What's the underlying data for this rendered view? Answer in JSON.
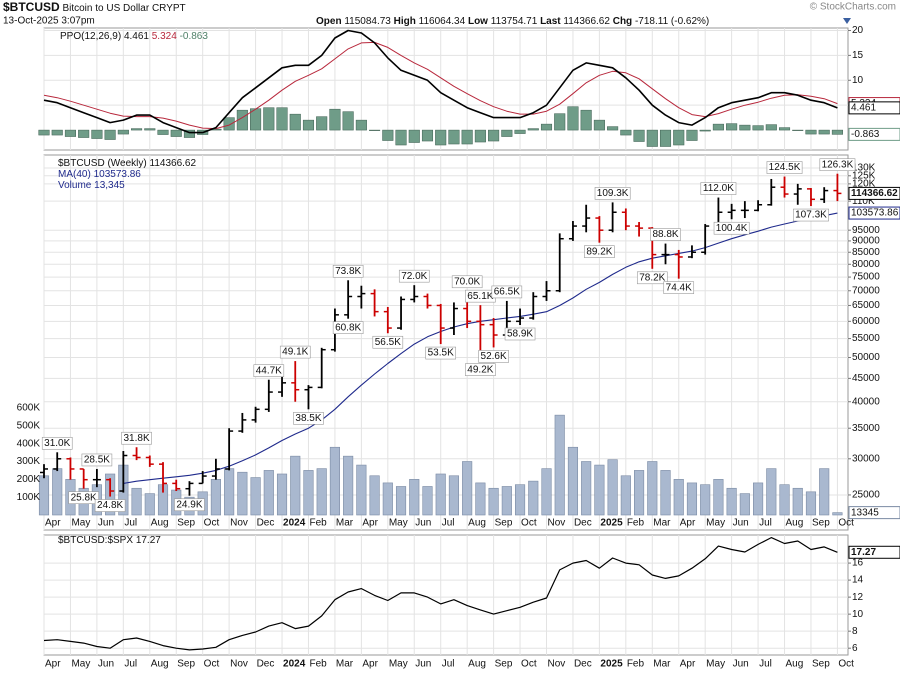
{
  "header": {
    "symbol": "$BTCUSD",
    "name": "Bitcoin to US Dollar",
    "exchange": "CRYPT",
    "datetime": "13-Oct-2025 3:07pm",
    "open_label": "Open",
    "open": 115084.73,
    "high_label": "High",
    "high": 116064.34,
    "low_label": "Low",
    "low": 113754.71,
    "last_label": "Last",
    "last": 114366.62,
    "chg_label": "Chg",
    "chg": "-718.11 (-0.62%)",
    "credit": "© StockCharts.com"
  },
  "time_axis": {
    "x": [
      0,
      0.5,
      1,
      1.5,
      2,
      2.5,
      3,
      3.5,
      4,
      4.5,
      5,
      5.5,
      6,
      6.5,
      7,
      7.5,
      8,
      8.5,
      9,
      9.5,
      10,
      10.5,
      11,
      11.5,
      12,
      12.5,
      13,
      13.5,
      14,
      14.5,
      15,
      15.5,
      16,
      16.5,
      17,
      17.5,
      18,
      18.5,
      19,
      19.5,
      20,
      20.5,
      21,
      21.5,
      22,
      22.5,
      23,
      23.5,
      24,
      24.5,
      25,
      25.5,
      26,
      26.5,
      27,
      27.5,
      28,
      28.5,
      29,
      29.5,
      30
    ],
    "xlim": [
      0,
      30.4
    ],
    "xticks": [
      {
        "value": 0,
        "label": "Apr"
      },
      {
        "value": 1,
        "label": "May"
      },
      {
        "value": 2,
        "label": "Jun"
      },
      {
        "value": 3,
        "label": "Jul"
      },
      {
        "value": 4,
        "label": "Aug"
      },
      {
        "value": 5,
        "label": "Sep"
      },
      {
        "value": 6,
        "label": "Oct"
      },
      {
        "value": 7,
        "label": "Nov"
      },
      {
        "value": 8,
        "label": "Dec"
      },
      {
        "value": 9,
        "label": "2024"
      },
      {
        "value": 10,
        "label": "Feb"
      },
      {
        "value": 11,
        "label": "Mar"
      },
      {
        "value": 12,
        "label": "Apr"
      },
      {
        "value": 13,
        "label": "May"
      },
      {
        "value": 14,
        "label": "Jun"
      },
      {
        "value": 15,
        "label": "Jul"
      },
      {
        "value": 16,
        "label": "Aug"
      },
      {
        "value": 17,
        "label": "Sep"
      },
      {
        "value": 18,
        "label": "Oct"
      },
      {
        "value": 19,
        "label": "Nov"
      },
      {
        "value": 20,
        "label": "Dec"
      },
      {
        "value": 21,
        "label": "2025"
      },
      {
        "value": 22,
        "label": "Feb"
      },
      {
        "value": 23,
        "label": "Mar"
      },
      {
        "value": 24,
        "label": "Apr"
      },
      {
        "value": 25,
        "label": "May"
      },
      {
        "value": 26,
        "label": "Jun"
      },
      {
        "value": 27,
        "label": "Jul"
      },
      {
        "value": 28,
        "label": "Aug"
      },
      {
        "value": 29,
        "label": "Sep"
      },
      {
        "value": 30,
        "label": "Oct"
      }
    ]
  },
  "chart_data": [
    {
      "type": "ppo",
      "title": "PPO(12,26,9)",
      "ylim": [
        -4,
        20.5
      ],
      "yticks": [
        5,
        10,
        15,
        20
      ],
      "grid": true,
      "ppo": {
        "color": "#000000",
        "values": [
          6.0,
          5.5,
          4.5,
          3.5,
          2.5,
          1.5,
          2.0,
          3.0,
          3.0,
          1.5,
          0.5,
          -0.5,
          -0.5,
          0.5,
          3.5,
          6.5,
          8.5,
          10.5,
          12.5,
          13.0,
          13.0,
          15.0,
          18.5,
          20.0,
          19.5,
          17.5,
          14.5,
          12.0,
          11.0,
          10.0,
          7.5,
          6.0,
          4.5,
          3.5,
          2.5,
          2.5,
          2.5,
          3.5,
          5.0,
          8.5,
          12.0,
          13.5,
          13.0,
          12.5,
          10.5,
          8.0,
          5.0,
          3.0,
          1.5,
          1.0,
          2.5,
          4.5,
          5.5,
          6.0,
          6.5,
          7.5,
          7.5,
          7.0,
          6.0,
          5.5,
          4.461
        ]
      },
      "signal": {
        "color": "#b8283c",
        "values": [
          7.0,
          6.5,
          5.8,
          5.0,
          4.2,
          3.4,
          2.8,
          2.7,
          2.7,
          2.4,
          1.8,
          1.0,
          0.4,
          0.3,
          1.0,
          2.5,
          4.2,
          6.0,
          8.0,
          9.8,
          11.0,
          12.3,
          14.3,
          16.3,
          17.5,
          17.6,
          16.6,
          15.0,
          13.5,
          12.2,
          10.5,
          8.8,
          7.3,
          5.9,
          4.7,
          3.8,
          3.2,
          3.2,
          3.8,
          5.2,
          7.3,
          9.5,
          11.0,
          11.8,
          11.5,
          10.3,
          8.3,
          6.3,
          4.5,
          3.1,
          2.7,
          3.3,
          4.2,
          5.0,
          5.6,
          6.4,
          7.0,
          7.1,
          6.8,
          6.3,
          5.324
        ]
      },
      "histogram": {
        "color": "#6f9c88",
        "values": [
          -1.0,
          -1.0,
          -1.3,
          -1.5,
          -1.7,
          -1.9,
          -0.8,
          0.3,
          0.3,
          -0.9,
          -1.3,
          -1.5,
          -0.9,
          0.2,
          2.5,
          4.0,
          4.3,
          4.5,
          4.5,
          3.2,
          2.0,
          2.7,
          4.2,
          3.7,
          2.0,
          -0.1,
          -2.1,
          -3.0,
          -2.5,
          -2.2,
          -3.0,
          -2.8,
          -2.8,
          -2.4,
          -2.2,
          -1.3,
          -0.7,
          0.3,
          1.2,
          3.3,
          4.7,
          4.0,
          2.0,
          0.7,
          -1.0,
          -2.3,
          -3.3,
          -3.3,
          -3.0,
          -2.1,
          -0.2,
          1.2,
          1.3,
          1.0,
          0.9,
          1.1,
          0.5,
          -0.1,
          -0.8,
          -0.8,
          -0.863
        ]
      }
    },
    {
      "type": "ohlc",
      "title": "$BTCUSD (Weekly)",
      "log": true,
      "grid": true,
      "ylim": [
        20950,
        138800
      ],
      "yticks": [
        {
          "value": 130000,
          "label": "130K"
        },
        {
          "value": 125000,
          "label": "125K"
        },
        {
          "value": 120000,
          "label": "120K"
        },
        {
          "value": 110000,
          "label": "110K"
        },
        95000,
        90000,
        85000,
        80000,
        75000,
        70000,
        65000,
        60000,
        55000,
        50000,
        45000,
        40000,
        35000,
        30000,
        25000
      ],
      "up_color": "#000000",
      "down_color": "#cc0000",
      "open": [
        28000,
        28500,
        30000,
        28500,
        27000,
        27000,
        25500,
        30500,
        30200,
        29200,
        26500,
        25800,
        26500,
        27500,
        28500,
        34500,
        36500,
        38500,
        42000,
        44000,
        42500,
        43000,
        52000,
        62000,
        68000,
        69000,
        63000,
        58000,
        67000,
        68000,
        65000,
        58000,
        64000,
        60000,
        59000,
        56000,
        60000,
        61000,
        68000,
        70000,
        91000,
        97000,
        101000,
        95000,
        104000,
        97000,
        96000,
        84000,
        84000,
        83000,
        85000,
        97000,
        104000,
        105000,
        105000,
        108000,
        118000,
        114000,
        117000,
        111000,
        116000
      ],
      "high": [
        29200,
        31000,
        30200,
        28500,
        28500,
        27200,
        31200,
        31800,
        30500,
        29500,
        27000,
        26800,
        28200,
        30000,
        35000,
        37800,
        39000,
        44700,
        45500,
        49100,
        43500,
        52500,
        64000,
        73800,
        71800,
        70500,
        64500,
        68000,
        72000,
        69000,
        65500,
        66000,
        70000,
        65100,
        61000,
        66500,
        64000,
        69500,
        73500,
        93500,
        99500,
        108000,
        102000,
        109300,
        106000,
        99000,
        96500,
        88800,
        86000,
        88000,
        98000,
        112000,
        108500,
        110000,
        110500,
        123000,
        124500,
        120000,
        117500,
        118000,
        126300
      ],
      "low": [
        27200,
        28200,
        27000,
        25800,
        26000,
        24800,
        25300,
        29800,
        28800,
        25300,
        25500,
        24900,
        26500,
        27000,
        28300,
        34200,
        36000,
        38000,
        41000,
        40000,
        38500,
        42800,
        51500,
        60800,
        64000,
        61500,
        56500,
        57500,
        66000,
        64000,
        53500,
        56000,
        58000,
        49200,
        52600,
        55500,
        58900,
        60500,
        66500,
        69500,
        90000,
        94000,
        89200,
        94000,
        95000,
        92000,
        78200,
        80000,
        74400,
        82500,
        84000,
        96000,
        100400,
        101000,
        104500,
        107500,
        112000,
        108000,
        107300,
        109000,
        110000
      ],
      "close": [
        28500,
        30000,
        28500,
        27000,
        27000,
        25500,
        30500,
        30200,
        29200,
        26500,
        25800,
        26500,
        27500,
        28500,
        34500,
        36500,
        38500,
        42000,
        44000,
        42500,
        43000,
        52000,
        62000,
        68000,
        69000,
        63000,
        58000,
        67000,
        68000,
        65000,
        58000,
        64000,
        60000,
        59000,
        56000,
        60000,
        61000,
        68000,
        70000,
        91000,
        97000,
        101000,
        95000,
        104000,
        97000,
        96000,
        84000,
        84000,
        83000,
        85000,
        97000,
        104000,
        105000,
        105000,
        108000,
        118000,
        114000,
        117000,
        111000,
        116000,
        114366.62
      ],
      "ma": {
        "name": "MA(40)",
        "color": "#1f2a8c",
        "values": [
          null,
          null,
          null,
          null,
          null,
          null,
          26500,
          26800,
          27000,
          27200,
          27400,
          27600,
          27900,
          28300,
          28900,
          29700,
          30600,
          31700,
          32900,
          34000,
          35000,
          36500,
          38500,
          41000,
          43500,
          46000,
          48500,
          51000,
          53500,
          55500,
          57000,
          58300,
          59300,
          60000,
          60500,
          61000,
          61500,
          62200,
          63000,
          65000,
          67500,
          70500,
          73000,
          76000,
          78800,
          81000,
          82500,
          83500,
          84500,
          85500,
          87000,
          89000,
          91000,
          92800,
          94500,
          96500,
          98000,
          99500,
          100800,
          102200,
          103573.86
        ]
      },
      "volume": {
        "name": "Volume",
        "color": "#a9b8cf",
        "ylim": [
          0,
          600000
        ],
        "yticks": [
          {
            "value": 100000,
            "label": "100K"
          },
          {
            "value": 200000,
            "label": "200K"
          },
          {
            "value": 300000,
            "label": "300K"
          },
          {
            "value": 400000,
            "label": "400K"
          },
          {
            "value": 500000,
            "label": "500K"
          },
          {
            "value": 600000,
            "label": "600K"
          }
        ],
        "values": [
          220000,
          260000,
          200000,
          150000,
          170000,
          230000,
          280000,
          150000,
          120000,
          170000,
          140000,
          100000,
          130000,
          200000,
          260000,
          240000,
          210000,
          250000,
          230000,
          330000,
          250000,
          260000,
          380000,
          330000,
          280000,
          220000,
          180000,
          160000,
          200000,
          160000,
          230000,
          220000,
          300000,
          180000,
          150000,
          160000,
          170000,
          190000,
          260000,
          560000,
          380000,
          300000,
          280000,
          310000,
          220000,
          250000,
          300000,
          250000,
          200000,
          180000,
          170000,
          200000,
          150000,
          120000,
          180000,
          260000,
          170000,
          150000,
          130000,
          260000,
          13345
        ],
        "value_labels": [
          null,
          null,
          null,
          null,
          null,
          null,
          null,
          null,
          null,
          null,
          null,
          null,
          null,
          null,
          null,
          null,
          null,
          null,
          null,
          null,
          null,
          null,
          null,
          null,
          null,
          null,
          null,
          null,
          null,
          null,
          null,
          null,
          null,
          null,
          null,
          null,
          null,
          null,
          null,
          null,
          null,
          null,
          null,
          null,
          null,
          null,
          null,
          null,
          null,
          null,
          null,
          null,
          null,
          null,
          null,
          null,
          null,
          null,
          null,
          null,
          "13,345"
        ]
      },
      "annotations": [
        {
          "x": 0.5,
          "value": 31000,
          "label": "31.0K"
        },
        {
          "x": 1.5,
          "value": 25800,
          "label": "25.8K"
        },
        {
          "x": 2,
          "value": 28500,
          "label": "28.5K"
        },
        {
          "x": 2.5,
          "value": 24800,
          "label": "24.8K"
        },
        {
          "x": 3.5,
          "value": 31800,
          "label": "31.8K"
        },
        {
          "x": 5.5,
          "value": 24900,
          "label": "24.9K"
        },
        {
          "x": 8.5,
          "value": 44700,
          "label": "44.7K"
        },
        {
          "x": 9.5,
          "value": 49100,
          "label": "49.1K"
        },
        {
          "x": 10,
          "value": 38500,
          "label": "38.5K"
        },
        {
          "x": 11.5,
          "value": 73800,
          "label": "73.8K"
        },
        {
          "x": 11.5,
          "value": 60800,
          "label": "60.8K"
        },
        {
          "x": 13,
          "value": 56500,
          "label": "56.5K"
        },
        {
          "x": 14,
          "value": 72000,
          "label": "72.0K"
        },
        {
          "x": 15,
          "value": 53500,
          "label": "53.5K"
        },
        {
          "x": 16,
          "value": 70000,
          "label": "70.0K"
        },
        {
          "x": 16.5,
          "value": 65100,
          "label": "65.1K"
        },
        {
          "x": 16.5,
          "value": 49200,
          "label": "49.2K"
        },
        {
          "x": 17,
          "value": 52600,
          "label": "52.6K"
        },
        {
          "x": 17.5,
          "value": 66500,
          "label": "66.5K"
        },
        {
          "x": 18,
          "value": 58900,
          "label": "58.9K"
        },
        {
          "x": 21,
          "value": 89200,
          "label": "89.2K"
        },
        {
          "x": 21.5,
          "value": 109300,
          "label": "109.3K"
        },
        {
          "x": 23,
          "value": 78200,
          "label": "78.2K"
        },
        {
          "x": 23.5,
          "value": 88800,
          "label": "88.8K"
        },
        {
          "x": 24,
          "value": 74400,
          "label": "74.4K"
        },
        {
          "x": 25.5,
          "value": 112000,
          "label": "112.0K"
        },
        {
          "x": 26,
          "value": 100400,
          "label": "100.4K"
        },
        {
          "x": 28,
          "value": 124500,
          "label": "124.5K"
        },
        {
          "x": 29,
          "value": 107300,
          "label": "107.3K"
        },
        {
          "x": 30,
          "value": 126300,
          "label": "126.3K"
        }
      ]
    },
    {
      "type": "line",
      "title": "$BTCUSD:$SPX",
      "ylim": [
        5.2,
        19.3
      ],
      "yticks": [
        6,
        8,
        10,
        12,
        14,
        16
      ],
      "grid": true,
      "color": "#000000",
      "values": [
        6.9,
        7.0,
        6.8,
        6.6,
        6.2,
        6.0,
        7.0,
        7.2,
        6.8,
        6.3,
        6.0,
        5.8,
        5.9,
        6.1,
        7.0,
        7.5,
        7.9,
        8.6,
        9.0,
        8.3,
        8.6,
        9.8,
        11.7,
        12.6,
        13.0,
        12.2,
        11.6,
        12.5,
        12.5,
        12.0,
        11.2,
        11.7,
        11.0,
        10.5,
        10.0,
        10.4,
        10.8,
        11.4,
        11.9,
        15.2,
        16.0,
        16.3,
        15.4,
        16.6,
        16.0,
        15.8,
        14.6,
        14.2,
        14.5,
        15.4,
        16.5,
        18.0,
        17.6,
        17.3,
        18.2,
        19.0,
        18.3,
        18.6,
        17.6,
        17.9,
        17.27
      ]
    }
  ]
}
